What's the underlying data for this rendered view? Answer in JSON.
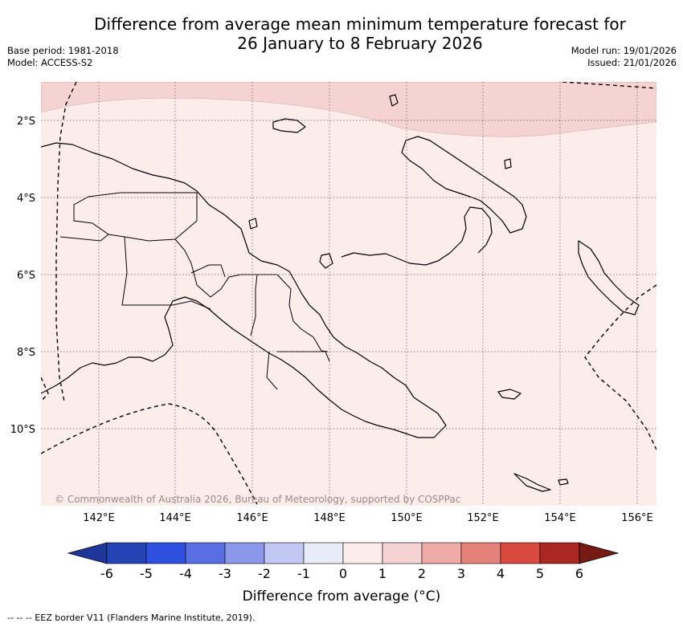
{
  "title": {
    "line1": "Difference from average mean minimum temperature forecast for",
    "line2": "26 January to 8 February 2026"
  },
  "meta": {
    "base_period": "Base period: 1981-2018",
    "model": "Model: ACCESS-S2",
    "model_run": "Model run: 19/01/2026",
    "issued": "Issued: 21/01/2026"
  },
  "map": {
    "region": "Papua New Guinea",
    "lon_range": [
      140.7,
      156.5
    ],
    "lat_range": [
      -12.0,
      -1.0
    ],
    "lon_ticks": [
      "142°E",
      "144°E",
      "146°E",
      "148°E",
      "150°E",
      "152°E",
      "154°E",
      "156°E"
    ],
    "lat_ticks": [
      "2°S",
      "4°S",
      "6°S",
      "8°S",
      "10°S"
    ],
    "background_category": "0 to 1",
    "highlight_category": "1 to 2",
    "copyright": "© Commonwealth of Australia 2026, Bureau of Meteorology, supported by COSPPac"
  },
  "colorbar": {
    "title": "Difference from average (°C)",
    "labels": [
      "-6",
      "-5",
      "-4",
      "-3",
      "-2",
      "-1",
      "0",
      "1",
      "2",
      "3",
      "4",
      "5",
      "6"
    ],
    "colors": [
      "#1e3599",
      "#2444b5",
      "#2f4fdf",
      "#5a6ee4",
      "#8a97ea",
      "#c2c8f4",
      "#e8ebf8",
      "#fcecea",
      "#f5d3d3",
      "#efaba7",
      "#e4817b",
      "#d94a3e",
      "#ab2721",
      "#751a14"
    ]
  },
  "colors": {
    "grid": "#555555",
    "coast": "#000000",
    "land_fill": "#fcecea",
    "highlight": "#f5d3d3"
  },
  "footnote": "--  --  -- EEZ border V11 (Flanders Marine Institute, 2019)."
}
